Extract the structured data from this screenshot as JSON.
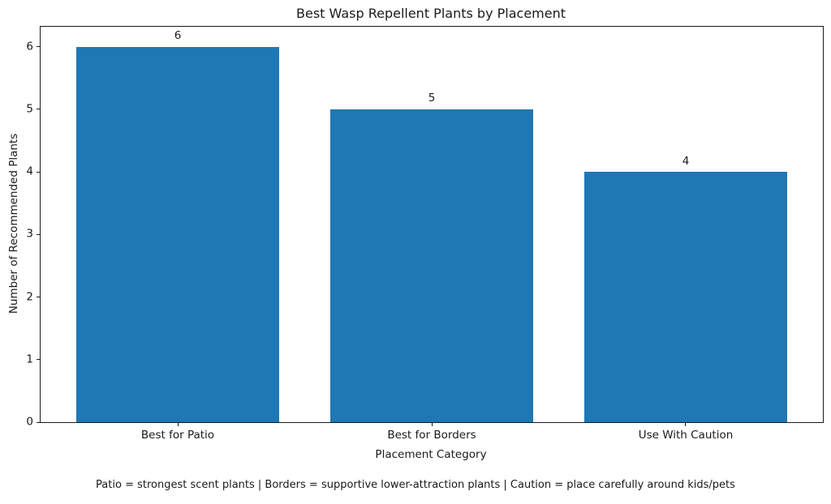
{
  "chart_data": {
    "type": "bar",
    "title": "Best Wasp Repellent Plants by Placement",
    "categories": [
      "Best for Patio",
      "Best for Borders",
      "Use With Caution"
    ],
    "values": [
      6,
      5,
      4
    ],
    "bar_value_labels": [
      "6",
      "5",
      "4"
    ],
    "xlabel": "Placement Category",
    "ylabel": "Number of Recommended Plants",
    "yticks": [
      0,
      1,
      2,
      3,
      4,
      5,
      6
    ],
    "ylim": [
      0,
      6.32
    ],
    "xlim": [
      -0.54,
      2.54
    ],
    "bar_width_units": 0.8,
    "bar_color": "#1f77b4",
    "text_color": "#000000",
    "spine_color": "#000000",
    "grid": false,
    "legend": "none",
    "footnote": "Patio = strongest scent plants | Borders = supportive lower-attraction plants | Caution = place carefully around kids/pets"
  }
}
